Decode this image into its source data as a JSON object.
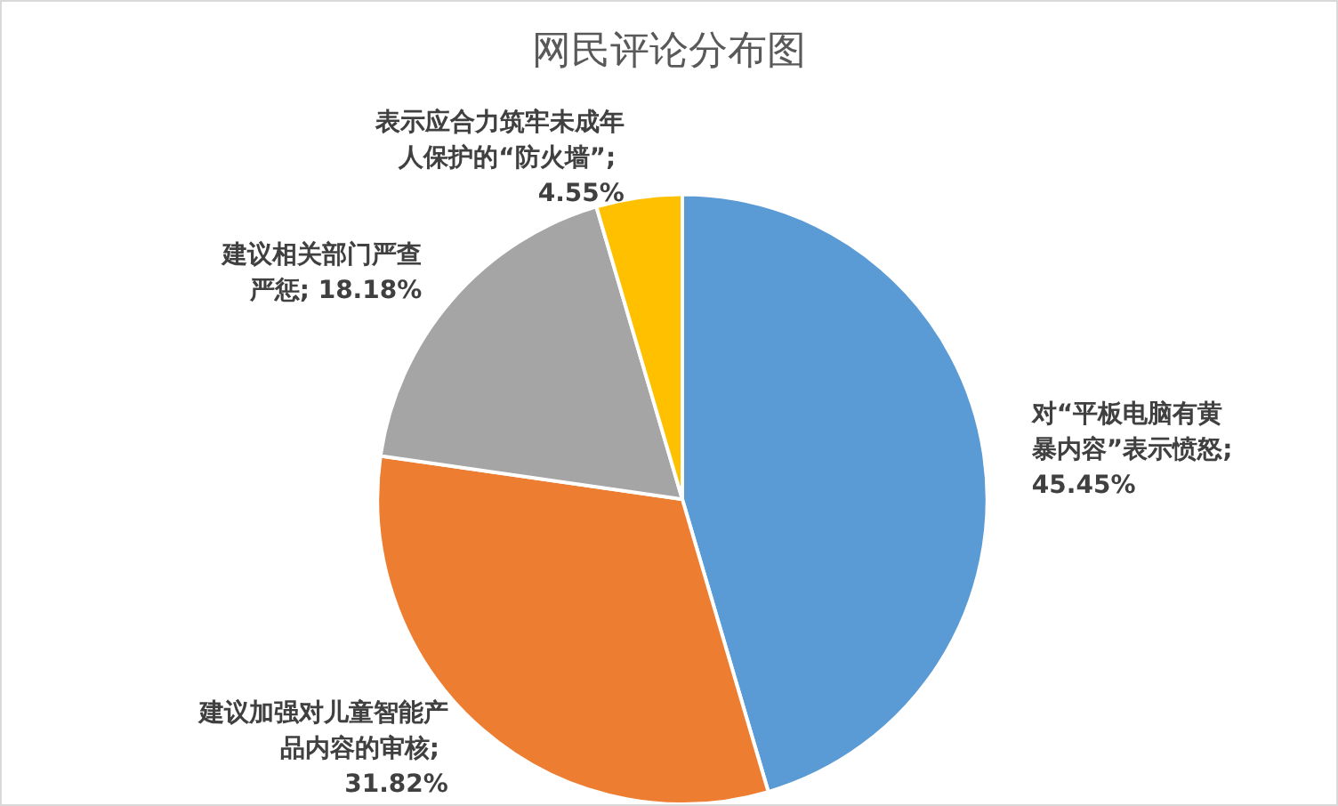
{
  "chart_data": {
    "type": "pie",
    "title": "网民评论分布图",
    "categories": [
      "对“平板电脑有黄暴内容”表示愤怒; 45.45%",
      "建议加强对儿童智能产品内容的审核; 31.82%",
      "建议相关部门严查严惩; 18.18%",
      "表示应合力筑牢未成年人保护的“防火墙”; 4.55%"
    ],
    "values": [
      45.45,
      31.82,
      18.18,
      4.55
    ],
    "colors": [
      "#5b9bd5",
      "#ed7d31",
      "#a5a5a5",
      "#ffc000"
    ]
  }
}
